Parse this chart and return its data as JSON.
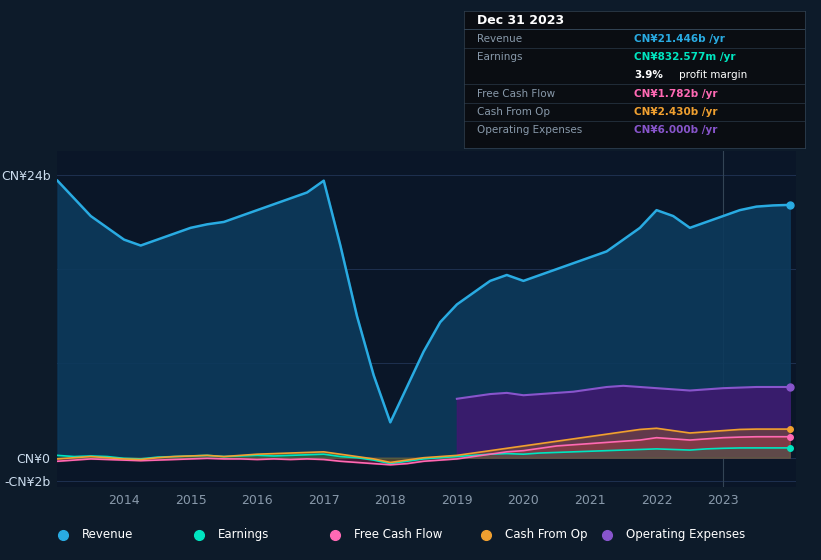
{
  "bg_color": "#0d1b2a",
  "plot_bg_color": "#0a1628",
  "grid_color": "#1e3050",
  "years": [
    2013.0,
    2013.25,
    2013.5,
    2013.75,
    2014.0,
    2014.25,
    2014.5,
    2014.75,
    2015.0,
    2015.25,
    2015.5,
    2015.75,
    2016.0,
    2016.25,
    2016.5,
    2016.75,
    2017.0,
    2017.25,
    2017.5,
    2017.75,
    2018.0,
    2018.25,
    2018.5,
    2018.75,
    2019.0,
    2019.25,
    2019.5,
    2019.75,
    2020.0,
    2020.25,
    2020.5,
    2020.75,
    2021.0,
    2021.25,
    2021.5,
    2021.75,
    2022.0,
    2022.25,
    2022.5,
    2022.75,
    2023.0,
    2023.25,
    2023.5,
    2023.75,
    2024.0
  ],
  "revenue": [
    23.5,
    22.0,
    20.5,
    19.5,
    18.5,
    18.0,
    18.5,
    19.0,
    19.5,
    19.8,
    20.0,
    20.5,
    21.0,
    21.5,
    22.0,
    22.5,
    23.5,
    18.0,
    12.0,
    7.0,
    3.0,
    6.0,
    9.0,
    11.5,
    13.0,
    14.0,
    15.0,
    15.5,
    15.0,
    15.5,
    16.0,
    16.5,
    17.0,
    17.5,
    18.5,
    19.5,
    21.0,
    20.5,
    19.5,
    20.0,
    20.5,
    21.0,
    21.3,
    21.4,
    21.446
  ],
  "earnings": [
    0.2,
    0.1,
    0.15,
    0.1,
    -0.05,
    -0.1,
    0.05,
    0.1,
    0.15,
    0.2,
    0.1,
    0.15,
    0.2,
    0.15,
    0.2,
    0.25,
    0.3,
    0.1,
    0.0,
    -0.2,
    -0.5,
    -0.3,
    -0.1,
    0.0,
    0.1,
    0.2,
    0.3,
    0.35,
    0.3,
    0.4,
    0.45,
    0.5,
    0.55,
    0.6,
    0.65,
    0.7,
    0.75,
    0.7,
    0.65,
    0.75,
    0.8,
    0.83,
    0.833,
    0.832,
    0.8326
  ],
  "free_cash_flow": [
    -0.3,
    -0.2,
    -0.1,
    -0.15,
    -0.2,
    -0.25,
    -0.2,
    -0.15,
    -0.1,
    -0.05,
    -0.1,
    -0.1,
    -0.15,
    -0.1,
    -0.15,
    -0.1,
    -0.15,
    -0.3,
    -0.4,
    -0.5,
    -0.6,
    -0.5,
    -0.3,
    -0.2,
    -0.1,
    0.1,
    0.3,
    0.5,
    0.6,
    0.8,
    1.0,
    1.1,
    1.2,
    1.3,
    1.4,
    1.5,
    1.7,
    1.6,
    1.5,
    1.6,
    1.7,
    1.75,
    1.78,
    1.782,
    1.782
  ],
  "cash_from_op": [
    -0.1,
    0.0,
    0.1,
    0.0,
    -0.1,
    -0.15,
    0.0,
    0.1,
    0.15,
    0.2,
    0.1,
    0.2,
    0.3,
    0.35,
    0.4,
    0.45,
    0.5,
    0.3,
    0.1,
    -0.1,
    -0.4,
    -0.2,
    0.0,
    0.1,
    0.2,
    0.4,
    0.6,
    0.8,
    1.0,
    1.2,
    1.4,
    1.6,
    1.8,
    2.0,
    2.2,
    2.4,
    2.5,
    2.3,
    2.1,
    2.2,
    2.3,
    2.4,
    2.43,
    2.43,
    2.43
  ],
  "operating_expenses_years": [
    2019.0,
    2019.25,
    2019.5,
    2019.75,
    2020.0,
    2020.25,
    2020.5,
    2020.75,
    2021.0,
    2021.25,
    2021.5,
    2021.75,
    2022.0,
    2022.25,
    2022.5,
    2022.75,
    2023.0,
    2023.25,
    2023.5,
    2023.75,
    2024.0
  ],
  "operating_expenses": [
    5.0,
    5.2,
    5.4,
    5.5,
    5.3,
    5.4,
    5.5,
    5.6,
    5.8,
    6.0,
    6.1,
    6.0,
    5.9,
    5.8,
    5.7,
    5.8,
    5.9,
    5.95,
    6.0,
    6.0,
    6.0
  ],
  "revenue_color": "#29abe2",
  "earnings_color": "#00e5c0",
  "fcf_color": "#ff69b4",
  "cashop_color": "#f0a030",
  "opex_color": "#8855cc",
  "revenue_fill": "#0d3a5c",
  "opex_fill": "#3d1a6e",
  "ylim_min": -2.5,
  "ylim_max": 26.0,
  "xlabel_color": "#8899aa",
  "text_color": "#ccddee",
  "info_title": "Dec 31 2023",
  "info_rows": [
    {
      "label": "Revenue",
      "value": "CN¥21.446b /yr",
      "color": "#29abe2"
    },
    {
      "label": "Earnings",
      "value": "CN¥832.577m /yr",
      "color": "#00e5c0"
    },
    {
      "label": "",
      "value": "3.9% profit margin",
      "color": "#ffffff"
    },
    {
      "label": "Free Cash Flow",
      "value": "CN¥1.782b /yr",
      "color": "#ff69b4"
    },
    {
      "label": "Cash From Op",
      "value": "CN¥2.430b /yr",
      "color": "#f0a030"
    },
    {
      "label": "Operating Expenses",
      "value": "CN¥6.000b /yr",
      "color": "#8855cc"
    }
  ],
  "legend_items": [
    {
      "label": "Revenue",
      "color": "#29abe2"
    },
    {
      "label": "Earnings",
      "color": "#00e5c0"
    },
    {
      "label": "Free Cash Flow",
      "color": "#ff69b4"
    },
    {
      "label": "Cash From Op",
      "color": "#f0a030"
    },
    {
      "label": "Operating Expenses",
      "color": "#8855cc"
    }
  ]
}
